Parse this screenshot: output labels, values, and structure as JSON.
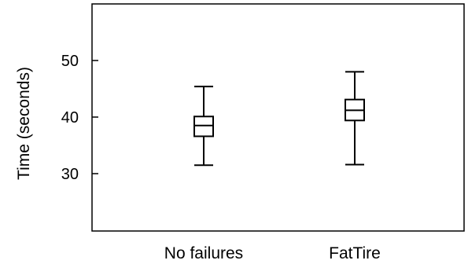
{
  "chart_data": {
    "type": "box",
    "title": "",
    "xlabel": "",
    "ylabel": "Time (seconds)",
    "ylim": [
      20,
      60
    ],
    "yticks": [
      30,
      40,
      50
    ],
    "ytick_labels": [
      "30",
      "40",
      "50"
    ],
    "categories": [
      "No failures",
      "FatTire"
    ],
    "boxes": [
      {
        "category": "No failures",
        "min": 31.5,
        "q1": 36.6,
        "median": 38.5,
        "q3": 40.1,
        "max": 45.4
      },
      {
        "category": "FatTire",
        "min": 31.6,
        "q1": 39.4,
        "median": 41.2,
        "q3": 43.1,
        "max": 48.0
      }
    ],
    "grid": false,
    "legend": "none"
  }
}
